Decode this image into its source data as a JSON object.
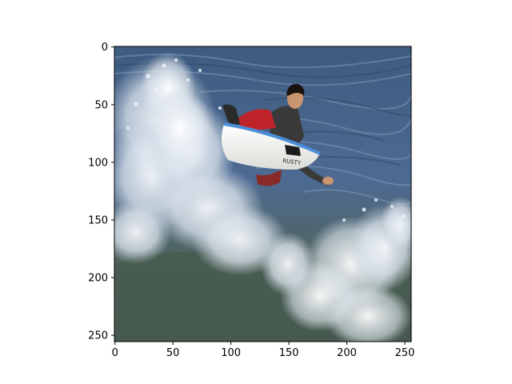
{
  "image": {
    "subject": "surfer performing aerial maneuver on white surfboard above breaking ocean wave",
    "board_text": "RUSTY",
    "palette": {
      "water_deep": "#3d5a80",
      "water_mid": "#5d7ca3",
      "water_dark_green": "#4a5d52",
      "foam": "#e8edf2",
      "board": "#f2f2f0",
      "board_rail": "#4a8fd9",
      "shorts": "#c0242b",
      "wetsuit": "#3a3a3a",
      "skin": "#c99470",
      "hair": "#1a1410"
    }
  },
  "axes": {
    "xlim": [
      0,
      255
    ],
    "ylim": [
      255,
      0
    ],
    "x_ticks": [
      "0",
      "50",
      "100",
      "150",
      "200",
      "250"
    ],
    "y_ticks": [
      "0",
      "50",
      "100",
      "150",
      "200",
      "250"
    ]
  }
}
